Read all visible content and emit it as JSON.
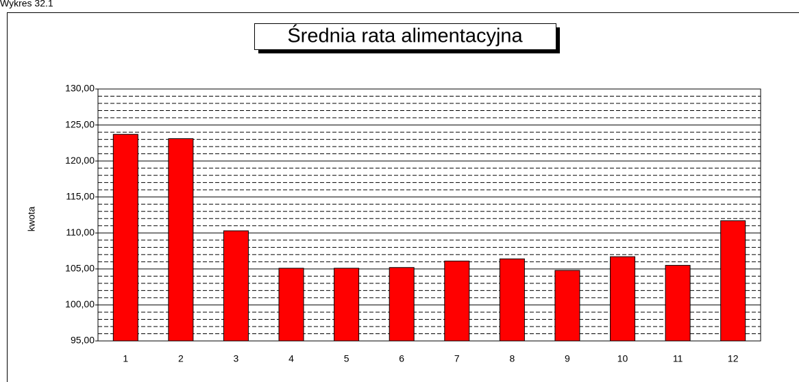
{
  "caption": "Wykres 32.1",
  "chart_data": {
    "type": "bar",
    "title": "Średnia rata alimentacyjna",
    "ylabel": "kwota",
    "categories": [
      "1",
      "2",
      "3",
      "4",
      "5",
      "6",
      "7",
      "8",
      "9",
      "10",
      "11",
      "12"
    ],
    "values": [
      123.7,
      123.1,
      110.3,
      105.1,
      105.1,
      105.2,
      106.1,
      106.4,
      104.8,
      106.7,
      105.5,
      111.7
    ],
    "color": "#ff0000",
    "ylim": [
      95,
      130
    ],
    "yticks": [
      {
        "value": 95,
        "label": "95,00"
      },
      {
        "value": 100,
        "label": "100,00"
      },
      {
        "value": 105,
        "label": "105,00"
      },
      {
        "value": 110,
        "label": "110,00"
      },
      {
        "value": 115,
        "label": "115,00"
      },
      {
        "value": 120,
        "label": "120,00"
      },
      {
        "value": 125,
        "label": "125,00"
      },
      {
        "value": 130,
        "label": "130,00"
      }
    ],
    "yminor_ticks": [
      96,
      97,
      98,
      99,
      101,
      102,
      103,
      104,
      106,
      107,
      108,
      109,
      111,
      112,
      113,
      114,
      116,
      117,
      118,
      119,
      121,
      122,
      123,
      124,
      126,
      127,
      128,
      129
    ],
    "grid": true
  }
}
